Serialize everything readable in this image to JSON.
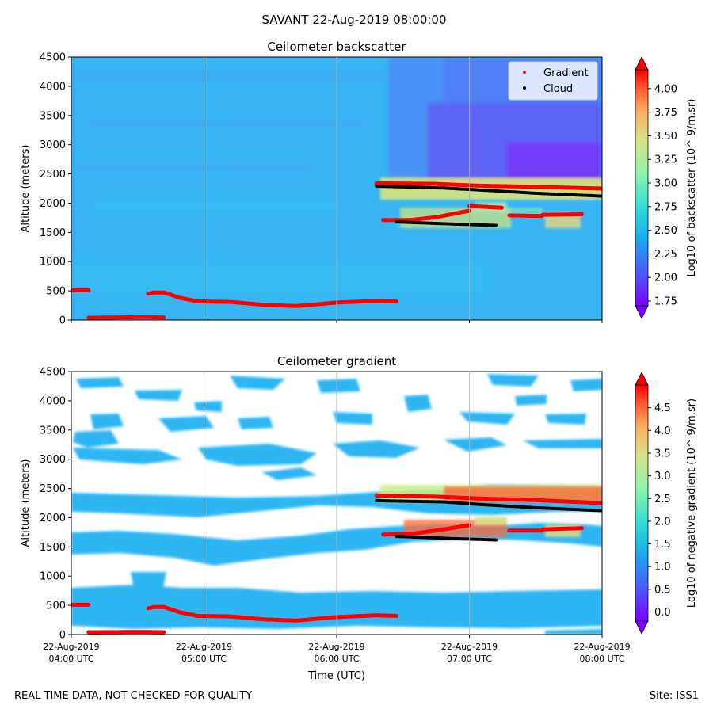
{
  "figure": {
    "title": "SAVANT 22-Aug-2019 08:00:00",
    "footer_left": "REAL TIME DATA, NOT CHECKED FOR QUALITY",
    "footer_right": "Site: ISS1"
  },
  "colors": {
    "gradient_marker": "#ff0000",
    "cloud_marker": "#000000",
    "background_blue": "#33b4f5",
    "axes": "#000000"
  },
  "chart_data": [
    {
      "type": "heatmap",
      "title": "Ceilometer backscatter",
      "ylabel": "Altitude (meters)",
      "xlabel": "",
      "xlim": [
        0,
        4
      ],
      "ylim": [
        0,
        4500
      ],
      "x_ticks": [
        {
          "value": 0,
          "line1": "",
          "line2": ""
        },
        {
          "value": 1,
          "line1": "",
          "line2": ""
        },
        {
          "value": 2,
          "line1": "",
          "line2": ""
        },
        {
          "value": 3,
          "line1": "",
          "line2": ""
        },
        {
          "value": 4,
          "line1": "",
          "line2": ""
        }
      ],
      "y_ticks": [
        0,
        500,
        1000,
        1500,
        2000,
        2500,
        3000,
        3500,
        4000,
        4500
      ],
      "colorbar": {
        "label": "Log10 of backscatter (10^-9/m.sr)",
        "min": 1.7,
        "max": 4.2,
        "ticks": [
          "1.75",
          "2.00",
          "2.25",
          "2.50",
          "2.75",
          "3.00",
          "3.25",
          "3.50",
          "3.75",
          "4.00"
        ]
      },
      "legend": {
        "position": "top-right",
        "entries": [
          {
            "label": "Gradient",
            "color": "#ff0000"
          },
          {
            "label": "Cloud",
            "color": "#000000"
          }
        ]
      },
      "series": [
        {
          "name": "Gradient",
          "segments": [
            [
              [
                0.0,
                510
              ],
              [
                0.13,
                510
              ]
            ],
            [
              [
                0.13,
                40
              ],
              [
                0.55,
                50
              ],
              [
                0.7,
                45
              ]
            ],
            [
              [
                0.58,
                450
              ],
              [
                0.62,
                470
              ],
              [
                0.7,
                470
              ],
              [
                0.82,
                380
              ],
              [
                0.95,
                320
              ],
              [
                1.2,
                310
              ],
              [
                1.45,
                260
              ],
              [
                1.7,
                240
              ],
              [
                2.0,
                300
              ],
              [
                2.3,
                330
              ],
              [
                2.45,
                320
              ]
            ],
            [
              [
                2.3,
                2340
              ],
              [
                2.75,
                2330
              ],
              [
                3.05,
                2300
              ],
              [
                3.5,
                2280
              ],
              [
                4.0,
                2250
              ]
            ],
            [
              [
                2.35,
                1710
              ],
              [
                2.55,
                1710
              ],
              [
                2.75,
                1760
              ],
              [
                3.0,
                1870
              ]
            ],
            [
              [
                3.0,
                1950
              ],
              [
                3.25,
                1920
              ]
            ],
            [
              [
                3.3,
                1790
              ],
              [
                3.55,
                1780
              ]
            ],
            [
              [
                3.55,
                1800
              ],
              [
                3.85,
                1810
              ]
            ]
          ]
        },
        {
          "name": "Cloud",
          "segments": [
            [
              [
                2.3,
                2290
              ],
              [
                2.8,
                2260
              ],
              [
                3.05,
                2230
              ],
              [
                3.5,
                2170
              ],
              [
                4.0,
                2120
              ]
            ],
            [
              [
                2.45,
                1680
              ],
              [
                2.9,
                1640
              ],
              [
                3.2,
                1620
              ]
            ]
          ]
        }
      ]
    },
    {
      "type": "heatmap",
      "title": "Ceilometer gradient",
      "ylabel": "Altitude (meters)",
      "xlabel": "Time (UTC)",
      "xlim": [
        0,
        4
      ],
      "ylim": [
        0,
        4500
      ],
      "x_ticks": [
        {
          "value": 0,
          "line1": "22-Aug-2019",
          "line2": "04:00 UTC"
        },
        {
          "value": 1,
          "line1": "22-Aug-2019",
          "line2": "05:00 UTC"
        },
        {
          "value": 2,
          "line1": "22-Aug-2019",
          "line2": "06:00 UTC"
        },
        {
          "value": 3,
          "line1": "22-Aug-2019",
          "line2": "07:00 UTC"
        },
        {
          "value": 4,
          "line1": "22-Aug-2019",
          "line2": "08:00 UTC"
        }
      ],
      "y_ticks": [
        0,
        500,
        1000,
        1500,
        2000,
        2500,
        3000,
        3500,
        4000,
        4500
      ],
      "colorbar": {
        "label": "Log10 of negative gradient (10^-9/m.sr)",
        "min": -0.2,
        "max": 5.0,
        "ticks": [
          "0.0",
          "0.5",
          "1.0",
          "1.5",
          "2.0",
          "2.5",
          "3.0",
          "3.5",
          "4.0",
          "4.5"
        ]
      },
      "series": [
        {
          "name": "Gradient",
          "segments": [
            [
              [
                0.0,
                510
              ],
              [
                0.13,
                510
              ]
            ],
            [
              [
                0.13,
                40
              ],
              [
                0.55,
                45
              ],
              [
                0.7,
                40
              ]
            ],
            [
              [
                0.58,
                450
              ],
              [
                0.62,
                470
              ],
              [
                0.7,
                470
              ],
              [
                0.82,
                380
              ],
              [
                0.95,
                320
              ],
              [
                1.2,
                310
              ],
              [
                1.45,
                260
              ],
              [
                1.7,
                240
              ],
              [
                2.0,
                300
              ],
              [
                2.3,
                330
              ],
              [
                2.45,
                320
              ]
            ],
            [
              [
                2.3,
                2380
              ],
              [
                2.75,
                2360
              ],
              [
                3.05,
                2330
              ],
              [
                3.5,
                2300
              ],
              [
                4.0,
                2250
              ]
            ],
            [
              [
                2.35,
                1710
              ],
              [
                2.55,
                1720
              ],
              [
                2.75,
                1780
              ],
              [
                3.0,
                1870
              ]
            ],
            [
              [
                3.3,
                1780
              ],
              [
                3.55,
                1780
              ]
            ],
            [
              [
                3.55,
                1800
              ],
              [
                3.85,
                1820
              ]
            ]
          ]
        },
        {
          "name": "Cloud",
          "segments": [
            [
              [
                2.3,
                2290
              ],
              [
                2.8,
                2270
              ],
              [
                3.05,
                2230
              ],
              [
                3.5,
                2170
              ],
              [
                4.0,
                2120
              ]
            ],
            [
              [
                2.45,
                1680
              ],
              [
                2.9,
                1640
              ],
              [
                3.2,
                1620
              ]
            ]
          ]
        }
      ]
    }
  ]
}
